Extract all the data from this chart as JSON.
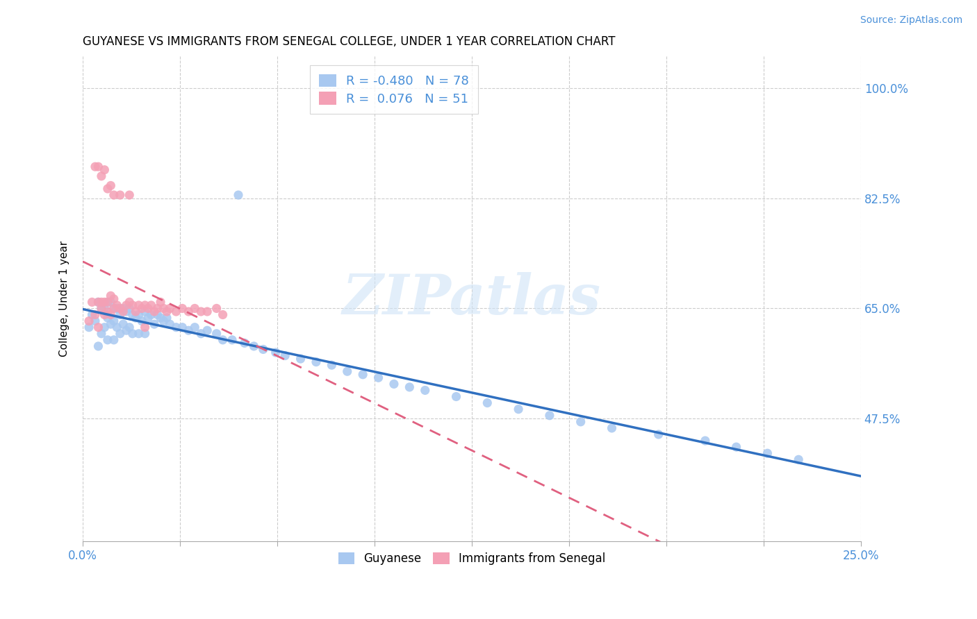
{
  "title": "GUYANESE VS IMMIGRANTS FROM SENEGAL COLLEGE, UNDER 1 YEAR CORRELATION CHART",
  "source": "Source: ZipAtlas.com",
  "ylabel": "College, Under 1 year",
  "yticks": [
    "100.0%",
    "82.5%",
    "65.0%",
    "47.5%"
  ],
  "ytick_vals": [
    1.0,
    0.825,
    0.65,
    0.475
  ],
  "xlim": [
    0.0,
    0.25
  ],
  "ylim": [
    0.28,
    1.05
  ],
  "legend_label1": "Guyanese",
  "legend_label2": "Immigrants from Senegal",
  "r1": "-0.480",
  "n1": "78",
  "r2": "0.076",
  "n2": "51",
  "color_blue": "#A8C8F0",
  "color_pink": "#F4A0B5",
  "line_blue": "#3070C0",
  "line_pink": "#E06080",
  "watermark": "ZIPatlas",
  "blue_dots_x": [
    0.002,
    0.003,
    0.004,
    0.005,
    0.005,
    0.006,
    0.006,
    0.007,
    0.007,
    0.008,
    0.008,
    0.008,
    0.009,
    0.009,
    0.01,
    0.01,
    0.01,
    0.011,
    0.011,
    0.012,
    0.012,
    0.013,
    0.013,
    0.014,
    0.014,
    0.015,
    0.015,
    0.016,
    0.016,
    0.017,
    0.018,
    0.018,
    0.019,
    0.02,
    0.02,
    0.021,
    0.022,
    0.023,
    0.024,
    0.025,
    0.026,
    0.027,
    0.028,
    0.03,
    0.032,
    0.034,
    0.036,
    0.038,
    0.04,
    0.043,
    0.045,
    0.048,
    0.052,
    0.055,
    0.058,
    0.062,
    0.065,
    0.07,
    0.075,
    0.08,
    0.085,
    0.09,
    0.095,
    0.1,
    0.105,
    0.11,
    0.12,
    0.13,
    0.14,
    0.15,
    0.16,
    0.17,
    0.185,
    0.2,
    0.21,
    0.22,
    0.23,
    0.05
  ],
  "blue_dots_y": [
    0.62,
    0.64,
    0.63,
    0.66,
    0.59,
    0.65,
    0.61,
    0.65,
    0.62,
    0.66,
    0.635,
    0.6,
    0.66,
    0.625,
    0.65,
    0.63,
    0.6,
    0.65,
    0.62,
    0.64,
    0.61,
    0.65,
    0.625,
    0.645,
    0.615,
    0.65,
    0.62,
    0.64,
    0.61,
    0.635,
    0.64,
    0.61,
    0.63,
    0.645,
    0.61,
    0.635,
    0.64,
    0.625,
    0.64,
    0.635,
    0.63,
    0.635,
    0.625,
    0.62,
    0.62,
    0.615,
    0.62,
    0.61,
    0.615,
    0.61,
    0.6,
    0.6,
    0.595,
    0.59,
    0.585,
    0.58,
    0.575,
    0.57,
    0.565,
    0.56,
    0.55,
    0.545,
    0.54,
    0.53,
    0.525,
    0.52,
    0.51,
    0.5,
    0.49,
    0.48,
    0.47,
    0.46,
    0.45,
    0.44,
    0.43,
    0.42,
    0.41,
    0.83
  ],
  "pink_dots_x": [
    0.002,
    0.003,
    0.004,
    0.005,
    0.005,
    0.006,
    0.006,
    0.007,
    0.007,
    0.008,
    0.008,
    0.009,
    0.009,
    0.01,
    0.01,
    0.011,
    0.012,
    0.013,
    0.014,
    0.015,
    0.016,
    0.017,
    0.018,
    0.019,
    0.02,
    0.021,
    0.022,
    0.023,
    0.024,
    0.025,
    0.026,
    0.027,
    0.028,
    0.03,
    0.032,
    0.034,
    0.036,
    0.038,
    0.04,
    0.043,
    0.045,
    0.01,
    0.008,
    0.006,
    0.004,
    0.005,
    0.007,
    0.009,
    0.012,
    0.015,
    0.02
  ],
  "pink_dots_y": [
    0.63,
    0.66,
    0.64,
    0.66,
    0.62,
    0.66,
    0.65,
    0.64,
    0.66,
    0.66,
    0.645,
    0.67,
    0.64,
    0.665,
    0.65,
    0.655,
    0.65,
    0.645,
    0.655,
    0.66,
    0.655,
    0.645,
    0.655,
    0.65,
    0.655,
    0.65,
    0.655,
    0.645,
    0.65,
    0.66,
    0.65,
    0.645,
    0.65,
    0.645,
    0.65,
    0.645,
    0.65,
    0.645,
    0.645,
    0.65,
    0.64,
    0.83,
    0.84,
    0.86,
    0.875,
    0.875,
    0.87,
    0.845,
    0.83,
    0.83,
    0.62
  ],
  "xtick_positions": [
    0.0,
    0.03125,
    0.0625,
    0.09375,
    0.125,
    0.15625,
    0.1875,
    0.21875,
    0.25
  ]
}
